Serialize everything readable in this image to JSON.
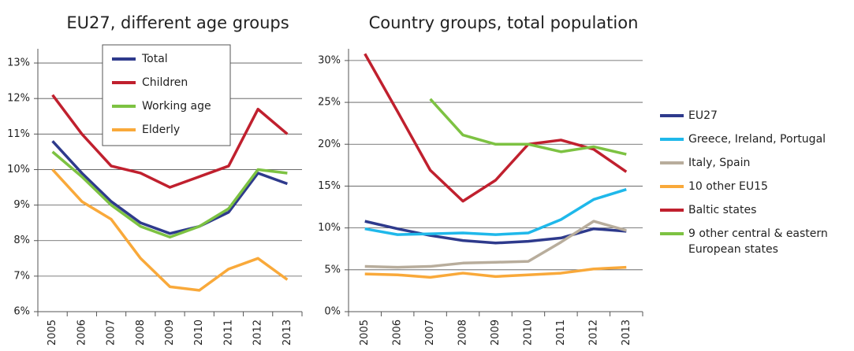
{
  "chart_data": [
    {
      "type": "line",
      "title": "EU27, different age groups",
      "categories": [
        "2005",
        "2006",
        "2007",
        "2008",
        "2009",
        "2010",
        "2011",
        "2012",
        "2013"
      ],
      "ylim": [
        6,
        13.4
      ],
      "yticks": [
        {
          "value": 6,
          "label": "6%"
        },
        {
          "value": 7,
          "label": "7%"
        },
        {
          "value": 8,
          "label": "8%"
        },
        {
          "value": 9,
          "label": "9%"
        },
        {
          "value": 10,
          "label": "10%"
        },
        {
          "value": 11,
          "label": "11%"
        },
        {
          "value": 12,
          "label": "12%"
        },
        {
          "value": 13,
          "label": "13%"
        }
      ],
      "grid": true,
      "legend": "inside",
      "series": [
        {
          "name": "Total",
          "color": "#2e3a8c",
          "values": [
            10.8,
            9.9,
            9.1,
            8.5,
            8.2,
            8.4,
            8.8,
            9.9,
            9.6
          ]
        },
        {
          "name": "Children",
          "color": "#c0202e",
          "values": [
            12.1,
            11.0,
            10.1,
            9.9,
            9.5,
            9.8,
            10.1,
            11.7,
            11.0
          ]
        },
        {
          "name": "Working age",
          "color": "#7dc242",
          "values": [
            10.5,
            9.8,
            9.0,
            8.4,
            8.1,
            8.4,
            8.9,
            10.0,
            9.9
          ]
        },
        {
          "name": "Elderly",
          "color": "#f9a93a",
          "values": [
            10.0,
            9.1,
            8.6,
            7.5,
            6.7,
            6.6,
            7.2,
            7.5,
            6.9
          ]
        }
      ]
    },
    {
      "type": "line",
      "title": "Country groups, total population",
      "categories": [
        "2005",
        "2006",
        "2007",
        "2008",
        "2009",
        "2010",
        "2011",
        "2012",
        "2013"
      ],
      "ylim": [
        0,
        31.4
      ],
      "yticks": [
        {
          "value": 0,
          "label": "0%"
        },
        {
          "value": 5,
          "label": "5%"
        },
        {
          "value": 10,
          "label": "10%"
        },
        {
          "value": 15,
          "label": "15%"
        },
        {
          "value": 20,
          "label": "20%"
        },
        {
          "value": 25,
          "label": "25%"
        },
        {
          "value": 30,
          "label": "30%"
        }
      ],
      "grid": true,
      "legend": "right",
      "series": [
        {
          "name": "EU27",
          "color": "#2e3a8c",
          "values": [
            10.8,
            9.9,
            9.1,
            8.5,
            8.2,
            8.4,
            8.8,
            9.9,
            9.6
          ]
        },
        {
          "name": "Greece, Ireland, Portugal",
          "color": "#1fb8ea",
          "values": [
            9.9,
            9.2,
            9.3,
            9.4,
            9.2,
            9.4,
            11.0,
            13.4,
            14.6
          ]
        },
        {
          "name": "Italy, Spain",
          "color": "#b8ad9c",
          "values": [
            5.4,
            5.3,
            5.4,
            5.8,
            5.9,
            6.0,
            8.3,
            10.8,
            9.7
          ]
        },
        {
          "name": "10 other EU15",
          "color": "#f9a93a",
          "values": [
            4.5,
            4.4,
            4.1,
            4.6,
            4.2,
            4.4,
            4.6,
            5.1,
            5.3
          ]
        },
        {
          "name": "Baltic states",
          "color": "#c0202e",
          "values": [
            30.8,
            23.9,
            16.9,
            13.2,
            15.7,
            20.0,
            20.5,
            19.4,
            16.7
          ]
        },
        {
          "name": "9 other central & eastern European states",
          "color": "#7dc242",
          "values": [
            null,
            null,
            25.4,
            21.1,
            20.0,
            20.0,
            19.1,
            19.7,
            18.8
          ]
        }
      ]
    }
  ]
}
